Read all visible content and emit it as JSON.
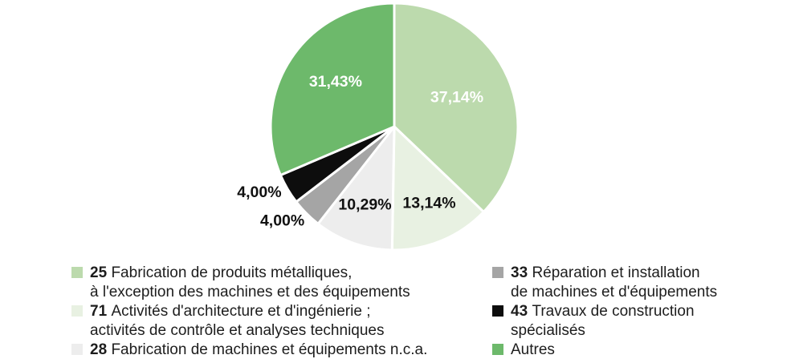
{
  "chart_data": {
    "type": "pie",
    "title": "",
    "unit": "%",
    "direction": "clockwise",
    "start_angle_deg": 0,
    "legend_position": "bottom",
    "background_color": "#ffffff",
    "slice_separator_color": "#ffffff",
    "slices": [
      {
        "code": "25",
        "name": "Fabrication de produits métalliques, à l'exception des machines et des équipements",
        "value": 37.14,
        "label": "37,14%",
        "color": "#bcdaad",
        "label_color": "#ffffff",
        "label_inside": true
      },
      {
        "code": "71",
        "name": "Activités d'architecture et d'ingénierie ; activités de contrôle et analyses techniques",
        "value": 13.14,
        "label": "13,14%",
        "color": "#e8f1e2",
        "label_color": "#111111",
        "label_inside": true
      },
      {
        "code": "28",
        "name": "Fabrication de machines et équipements n.c.a.",
        "value": 10.29,
        "label": "10,29%",
        "color": "#ededed",
        "label_color": "#111111",
        "label_inside": true
      },
      {
        "code": "33",
        "name": "Réparation et installation de machines et d'équipements",
        "value": 4.0,
        "label": "4,00%",
        "color": "#a5a5a5",
        "label_color": "#111111",
        "label_inside": false
      },
      {
        "code": "43",
        "name": "Travaux de construction spécialisés",
        "value": 4.0,
        "label": "4,00%",
        "color": "#0d0d0d",
        "label_color": "#111111",
        "label_inside": false
      },
      {
        "code": "",
        "name": "Autres",
        "value": 31.43,
        "label": "31,43%",
        "color": "#6db96b",
        "label_color": "#ffffff",
        "label_inside": true
      }
    ]
  },
  "legend": {
    "columns": [
      {
        "items": [
          {
            "code": "25",
            "line1": "Fabrication de produits métalliques,",
            "line2": "à l'exception des machines et des équipements",
            "color": "#bcdaad"
          },
          {
            "code": "71",
            "line1": "Activités d'architecture et d'ingénierie ;",
            "line2": "activités de contrôle et analyses techniques",
            "color": "#e8f1e2"
          },
          {
            "code": "28",
            "line1": "Fabrication de machines et équipements n.c.a.",
            "line2": "",
            "color": "#ededed"
          }
        ]
      },
      {
        "items": [
          {
            "code": "33",
            "line1": "Réparation et installation",
            "line2": "de machines et d'équipements",
            "color": "#a5a5a5"
          },
          {
            "code": "43",
            "line1": "Travaux de construction",
            "line2": "spécialisés",
            "color": "#0d0d0d"
          },
          {
            "code": "",
            "line1": "Autres",
            "line2": "",
            "color": "#6db96b"
          }
        ]
      }
    ]
  }
}
